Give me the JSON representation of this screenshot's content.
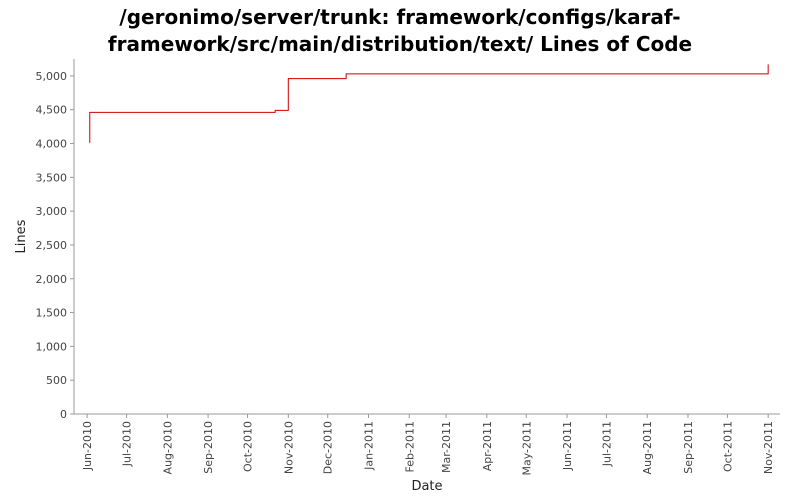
{
  "chart_data": {
    "type": "line",
    "title_lines": [
      "/geronimo/server/trunk: framework/configs/karaf-",
      "framework/src/main/distribution/text/ Lines of Code"
    ],
    "xlabel": "Date",
    "ylabel": "Lines",
    "ylim": [
      0,
      5250
    ],
    "y_ticks": [
      0,
      500,
      1000,
      1500,
      2000,
      2500,
      3000,
      3500,
      4000,
      4500,
      5000
    ],
    "y_tick_labels": [
      "0",
      "500",
      "1,000",
      "1,500",
      "2,000",
      "2,500",
      "3,000",
      "3,500",
      "4,000",
      "4,500",
      "5,000"
    ],
    "xlim": [
      "2010-05-22",
      "2011-11-10"
    ],
    "x_ticks": [
      "2010-06-01",
      "2010-07-01",
      "2010-08-01",
      "2010-09-01",
      "2010-10-01",
      "2010-11-01",
      "2010-12-01",
      "2011-01-01",
      "2011-02-01",
      "2011-03-01",
      "2011-04-01",
      "2011-05-01",
      "2011-06-01",
      "2011-07-01",
      "2011-08-01",
      "2011-09-01",
      "2011-10-01",
      "2011-11-01"
    ],
    "x_tick_labels": [
      "Jun-2010",
      "Jul-2010",
      "Aug-2010",
      "Sep-2010",
      "Oct-2010",
      "Nov-2010",
      "Dec-2010",
      "Jan-2011",
      "Feb-2011",
      "Mar-2011",
      "Apr-2011",
      "May-2011",
      "Jun-2011",
      "Jul-2011",
      "Aug-2011",
      "Sep-2011",
      "Oct-2011",
      "Nov-2011"
    ],
    "grid": false,
    "step": true,
    "series": [
      {
        "color": "#cc0000",
        "points": [
          [
            "2010-06-03",
            4010
          ],
          [
            "2010-06-03",
            4460
          ],
          [
            "2010-10-22",
            4490
          ],
          [
            "2010-11-01",
            4960
          ],
          [
            "2010-12-15",
            5030
          ],
          [
            "2011-11-01",
            5170
          ]
        ]
      }
    ]
  }
}
